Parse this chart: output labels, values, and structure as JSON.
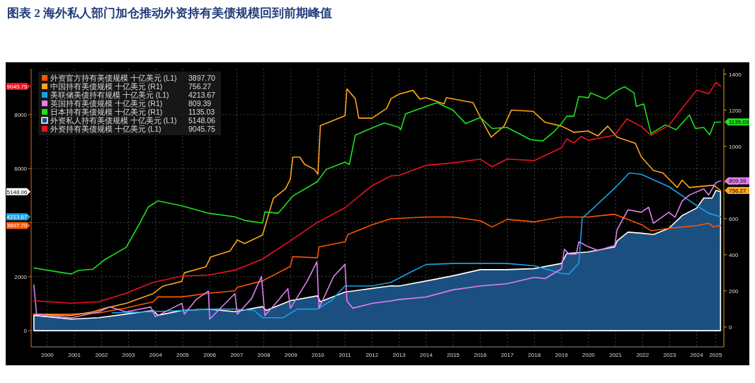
{
  "chart_data": {
    "type": "line",
    "title": "图表 2 海外私人部门加仓推动外资持有美债规模回到前期峰值",
    "xlim": [
      1999.9,
      2025.45
    ],
    "xticks": [
      {
        "value": 2000.5,
        "label": "2000"
      },
      {
        "value": 2001.5,
        "label": "2001"
      },
      {
        "value": 2002.5,
        "label": "2002"
      },
      {
        "value": 2003.5,
        "label": "2003"
      },
      {
        "value": 2004.5,
        "label": "2004"
      },
      {
        "value": 2005.5,
        "label": "2005"
      },
      {
        "value": 2006.5,
        "label": "2006"
      },
      {
        "value": 2007.5,
        "label": "2007"
      },
      {
        "value": 2008.5,
        "label": "2008"
      },
      {
        "value": 2009.5,
        "label": "2009"
      },
      {
        "value": 2010.5,
        "label": "2010"
      },
      {
        "value": 2011.5,
        "label": "2011"
      },
      {
        "value": 2012.5,
        "label": "2012"
      },
      {
        "value": 2013.5,
        "label": "2013"
      },
      {
        "value": 2014.5,
        "label": "2014"
      },
      {
        "value": 2015.5,
        "label": "2015"
      },
      {
        "value": 2016.5,
        "label": "2016"
      },
      {
        "value": 2017.5,
        "label": "2017"
      },
      {
        "value": 2018.5,
        "label": "2018"
      },
      {
        "value": 2019.5,
        "label": "2019"
      },
      {
        "value": 2020.5,
        "label": "2020"
      },
      {
        "value": 2021.5,
        "label": "2021"
      },
      {
        "value": 2022.5,
        "label": "2022"
      },
      {
        "value": 2023.5,
        "label": "2023"
      },
      {
        "value": 2024.5,
        "label": "2024"
      },
      {
        "value": 2025.2,
        "label": "2025"
      }
    ],
    "ylim": [
      -600,
      9700
    ],
    "yticks": [
      0,
      2000,
      {
        "value": 4000,
        "label": null
      },
      6000,
      8000
    ],
    "y2lim": [
      -110,
      1430
    ],
    "y2ticks": [
      0,
      200,
      400,
      600,
      800,
      1000,
      1200,
      1400
    ],
    "grid": true,
    "annotations": [
      "3897.70",
      "756.27",
      "4213.67",
      "809.39",
      "1135.03",
      "5148.06",
      "9045.75"
    ],
    "legend": "top left",
    "series": [
      {
        "name": "外资官方持有美债规模 十亿美元 (L1)",
        "color": "#ff5500",
        "x": [
          2000.0,
          2001.38,
          2002.4,
          2003.41,
          2004.41,
          2004.58,
          2005.47,
          2006.45,
          2007.43,
          2007.52,
          2008.45,
          2009.48,
          2009.57,
          2010.48,
          2010.54,
          2011.5,
          2011.61,
          2012.5,
          2013.2,
          2014.5,
          2015.49,
          2016.5,
          2016.94,
          2017.49,
          2018.5,
          2019.5,
          2020.48,
          2021.47,
          2022.45,
          2022.81,
          2023.47,
          2024.5,
          2024.94,
          2025.12,
          2025.38
        ],
        "values": [
          610,
          610,
          660,
          840,
          1070,
          1250,
          1250,
          1385,
          1475,
          1610,
          1840,
          2380,
          2740,
          2700,
          3100,
          3290,
          3560,
          3920,
          4145,
          4210,
          4210,
          4070,
          3840,
          4120,
          4030,
          4210,
          4210,
          4310,
          3930,
          3700,
          3790,
          3890,
          3980,
          3840,
          3897.7
        ]
      },
      {
        "name": "中国持有美债规模 十亿美元 (R1)",
        "color": "#ffa31a",
        "axis": "y2",
        "x": [
          2000.0,
          2001.38,
          2002.18,
          2002.63,
          2003.41,
          2004.41,
          2004.76,
          2005.47,
          2005.56,
          2006.36,
          2006.54,
          2007.25,
          2007.52,
          2007.79,
          2008.45,
          2008.85,
          2009.3,
          2009.48,
          2009.57,
          2009.83,
          2010.01,
          2010.37,
          2010.5,
          2010.59,
          2011.5,
          2011.57,
          2011.88,
          2012.01,
          2012.5,
          2013.04,
          2013.2,
          2013.5,
          2014.01,
          2014.27,
          2014.5,
          2015.16,
          2015.25,
          2016.23,
          2016.58,
          2016.9,
          2017.38,
          2017.65,
          2018.45,
          2018.9,
          2019.5,
          2019.96,
          2020.48,
          2020.85,
          2021.21,
          2021.56,
          2022.23,
          2022.45,
          2022.9,
          2023.25,
          2023.78,
          2023.96,
          2024.23,
          2025.12,
          2025.38
        ],
        "values": [
          71,
          64,
          84,
          104,
          131,
          185,
          226,
          253,
          300,
          334,
          388,
          421,
          482,
          462,
          509,
          711,
          765,
          819,
          940,
          940,
          900,
          873,
          846,
          1115,
          1169,
          1318,
          1264,
          1156,
          1156,
          1210,
          1264,
          1289,
          1310,
          1262,
          1269,
          1235,
          1269,
          1242,
          1139,
          1051,
          1112,
          1201,
          1194,
          1133,
          1112,
          1078,
          1085,
          1058,
          1112,
          1051,
          1017,
          942,
          867,
          853,
          772,
          813,
          772,
          785,
          756.27
        ]
      },
      {
        "name": "美联储美债持有规模 十亿美元 (L1)",
        "color": "#16a2e6",
        "x": [
          2002.89,
          2004.41,
          2005.47,
          2006.45,
          2007.43,
          2008.14,
          2008.45,
          2009.21,
          2009.74,
          2010.48,
          2010.99,
          2011.5,
          2012.5,
          2013.2,
          2014.01,
          2014.5,
          2015.49,
          2017.49,
          2018.5,
          2019.5,
          2019.78,
          2020.14,
          2020.27,
          2020.48,
          2021.47,
          2022.01,
          2022.45,
          2023.47,
          2024.5,
          2024.94,
          2025.38
        ],
        "values": [
          660,
          705,
          750,
          800,
          800,
          750,
          480,
          480,
          800,
          800,
          1110,
          1655,
          1655,
          1790,
          2210,
          2450,
          2490,
          2490,
          2400,
          2120,
          2100,
          2490,
          4170,
          4350,
          5280,
          5840,
          5790,
          5330,
          4630,
          4350,
          4213.67
        ]
      },
      {
        "name": "英国持有美债规模 十亿美元 (R1)",
        "color": "#e07ff0",
        "axis": "y2",
        "x": [
          2000.0,
          2000.1,
          2001.38,
          2002.4,
          2002.8,
          2003.41,
          2004.32,
          2004.49,
          2005.47,
          2005.56,
          2006.0,
          2006.45,
          2006.5,
          2007.43,
          2007.52,
          2008.05,
          2008.41,
          2008.54,
          2008.94,
          2009.39,
          2009.48,
          2010.1,
          2010.46,
          2010.54,
          2011.08,
          2011.5,
          2011.57,
          2011.79,
          2012.5,
          2013.2,
          2013.5,
          2014.5,
          2015.49,
          2016.5,
          2017.49,
          2018.5,
          2018.9,
          2019.5,
          2019.61,
          2019.78,
          2020.05,
          2020.14,
          2020.48,
          2020.85,
          2021.47,
          2021.56,
          2021.96,
          2022.45,
          2022.72,
          2022.9,
          2023.47,
          2023.7,
          2023.96,
          2024.23,
          2024.76,
          2024.94,
          2025.21,
          2025.38
        ],
        "values": [
          233,
          71,
          51,
          84,
          111,
          84,
          111,
          57,
          131,
          71,
          152,
          199,
          44,
          185,
          71,
          158,
          280,
          64,
          131,
          212,
          104,
          253,
          361,
          104,
          280,
          347,
          145,
          104,
          131,
          145,
          152,
          166,
          206,
          227,
          240,
          275,
          268,
          322,
          431,
          404,
          404,
          472,
          445,
          424,
          451,
          540,
          649,
          635,
          663,
          574,
          635,
          608,
          697,
          731,
          765,
          731,
          799,
          809.39
        ]
      },
      {
        "name": "日本持有美债规模 十亿美元 (R1)",
        "color": "#1ee01e",
        "axis": "y2",
        "x": [
          2000.0,
          2001.38,
          2001.65,
          2002.18,
          2002.63,
          2003.41,
          2003.87,
          2004.23,
          2004.58,
          2005.47,
          2006.45,
          2007.43,
          2007.79,
          2008.45,
          2008.54,
          2009.03,
          2009.57,
          2010.48,
          2010.81,
          2011.5,
          2011.66,
          2011.88,
          2012.5,
          2012.95,
          2013.5,
          2013.56,
          2013.74,
          2014.5,
          2014.9,
          2015.49,
          2015.96,
          2016.5,
          2016.94,
          2017.49,
          2018.36,
          2018.81,
          2019.25,
          2019.5,
          2019.7,
          2019.96,
          2020.14,
          2020.5,
          2020.58,
          2021.12,
          2021.56,
          2021.83,
          2022.18,
          2022.27,
          2022.54,
          2022.81,
          2023.34,
          2023.74,
          2024.23,
          2024.45,
          2024.76,
          2024.98,
          2025.16,
          2025.38
        ],
        "values": [
          327,
          293,
          313,
          320,
          374,
          441,
          563,
          664,
          698,
          671,
          630,
          610,
          590,
          576,
          637,
          630,
          725,
          805,
          873,
          913,
          900,
          1062,
          1102,
          1129,
          1105,
          1092,
          1180,
          1221,
          1242,
          1201,
          1126,
          1160,
          1099,
          1105,
          1037,
          1030,
          1085,
          1126,
          1167,
          1167,
          1276,
          1269,
          1296,
          1262,
          1310,
          1330,
          1296,
          1221,
          1235,
          1071,
          1119,
          1092,
          1173,
          1099,
          1105,
          1064,
          1133,
          1135.03
        ]
      },
      {
        "name": "外资私人持有美债规模 十亿美元 (L1)",
        "color": "#1b4f80",
        "type": "area",
        "x": [
          2000.0,
          2001.38,
          2002.4,
          2003.41,
          2004.41,
          2004.58,
          2005.47,
          2006.45,
          2007.43,
          2008.45,
          2008.59,
          2009.48,
          2010.48,
          2010.59,
          2011.5,
          2012.5,
          2013.2,
          2013.5,
          2014.5,
          2015.49,
          2016.5,
          2017.49,
          2018.5,
          2019.5,
          2019.7,
          2020.48,
          2021.47,
          2021.56,
          2021.96,
          2022.45,
          2022.9,
          2023.47,
          2023.96,
          2024.5,
          2024.76,
          2025.07,
          2025.21,
          2025.38
        ],
        "values": [
          570,
          430,
          480,
          615,
          750,
          570,
          750,
          800,
          705,
          890,
          750,
          1110,
          1290,
          1070,
          1430,
          1565,
          1660,
          1655,
          1840,
          2030,
          2260,
          2260,
          2300,
          2490,
          2860,
          2910,
          3100,
          3330,
          3650,
          3610,
          3560,
          3790,
          4260,
          4540,
          4910,
          4910,
          5190,
          5148.06
        ]
      },
      {
        "name": "外资持有美债规模 十亿美元 (L1)",
        "color": "#ee1122",
        "x": [
          2000.0,
          2001.38,
          2002.4,
          2003.41,
          2004.41,
          2005.47,
          2006.45,
          2007.43,
          2008.45,
          2009.48,
          2010.48,
          2011.5,
          2012.5,
          2013.2,
          2013.5,
          2014.5,
          2015.49,
          2016.5,
          2016.94,
          2017.49,
          2018.5,
          2019.5,
          2019.7,
          2019.96,
          2020.23,
          2020.48,
          2021.47,
          2021.92,
          2022.45,
          2022.81,
          2023.47,
          2023.83,
          2024.5,
          2024.94,
          2025.21,
          2025.38
        ],
        "values": [
          1110,
          1020,
          1070,
          1385,
          1790,
          2020,
          2060,
          2240,
          2650,
          3330,
          4010,
          4550,
          5370,
          5730,
          5750,
          6120,
          6210,
          6350,
          6070,
          6350,
          6300,
          6770,
          7100,
          6950,
          7190,
          7050,
          7235,
          7840,
          7560,
          7235,
          7600,
          8070,
          8910,
          8770,
          9190,
          9045.75
        ]
      }
    ]
  }
}
